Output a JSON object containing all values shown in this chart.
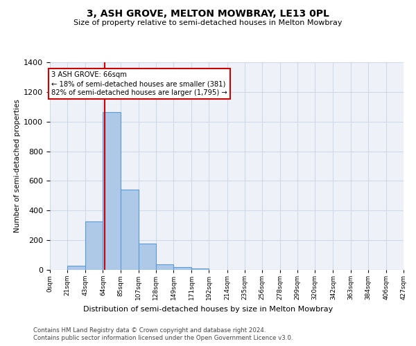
{
  "title": "3, ASH GROVE, MELTON MOWBRAY, LE13 0PL",
  "subtitle": "Size of property relative to semi-detached houses in Melton Mowbray",
  "xlabel": "Distribution of semi-detached houses by size in Melton Mowbray",
  "ylabel": "Number of semi-detached properties",
  "footnote1": "Contains HM Land Registry data © Crown copyright and database right 2024.",
  "footnote2": "Contains public sector information licensed under the Open Government Licence v3.0.",
  "property_size": 66,
  "property_label": "3 ASH GROVE: 66sqm",
  "pct_smaller": 18,
  "count_smaller": 381,
  "pct_larger": 82,
  "count_larger": 1795,
  "bin_edges": [
    0,
    21,
    43,
    64,
    85,
    107,
    128,
    149,
    171,
    192,
    214,
    235,
    256,
    278,
    299,
    320,
    342,
    363,
    384,
    406,
    427
  ],
  "bin_counts": [
    0,
    30,
    325,
    1065,
    540,
    178,
    38,
    20,
    10,
    0,
    0,
    0,
    0,
    0,
    0,
    0,
    0,
    0,
    0,
    0
  ],
  "bar_color": "#aec8e8",
  "bar_edge_color": "#5b9bd5",
  "red_line_color": "#cc0000",
  "annotation_box_color": "#cc0000",
  "grid_color": "#d0d8e8",
  "background_color": "#eef2f8",
  "ylim": [
    0,
    1400
  ],
  "yticks": [
    0,
    200,
    400,
    600,
    800,
    1000,
    1200,
    1400
  ],
  "x_tick_labels": [
    "0sqm",
    "21sqm",
    "43sqm",
    "64sqm",
    "85sqm",
    "107sqm",
    "128sqm",
    "149sqm",
    "171sqm",
    "192sqm",
    "214sqm",
    "235sqm",
    "256sqm",
    "278sqm",
    "299sqm",
    "320sqm",
    "342sqm",
    "363sqm",
    "384sqm",
    "406sqm",
    "427sqm"
  ]
}
